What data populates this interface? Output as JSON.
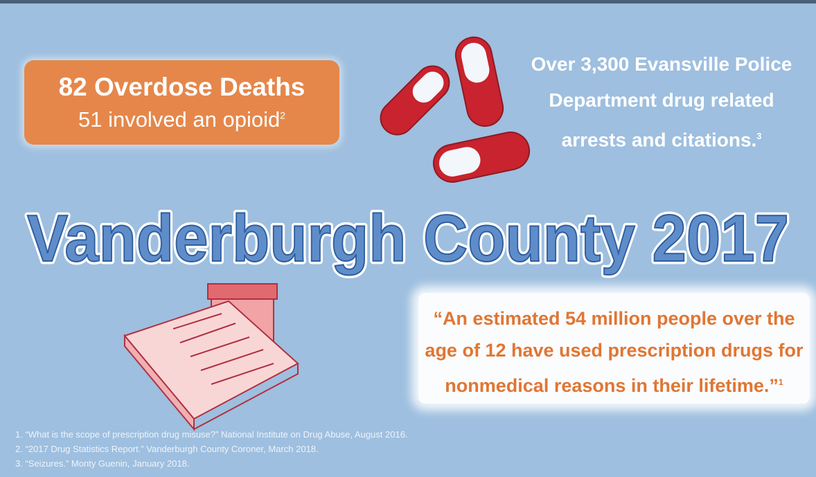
{
  "stat": {
    "headline": "82 Overdose Deaths",
    "detail": "51 involved an opioid",
    "ref": "2"
  },
  "arrests": {
    "text": "Over 3,300 Evansville Police Department drug related arrests and citations.",
    "ref": "3"
  },
  "title": "Vanderburgh County 2017",
  "quote": {
    "text": "“An estimated 54 million people over the age of 12 have used prescription drugs for nonmedical reasons in their lifetime.”",
    "ref": "1"
  },
  "footnotes": [
    "1. “What is the scope of prescription drug misuse?” National Institute on Drug Abuse, August 2016.",
    "2. “2017 Drug Statistics Report.” Vanderburgh County Coroner, March 2018.",
    "3. “Seizures.” Monty Guenin, January 2018."
  ]
}
